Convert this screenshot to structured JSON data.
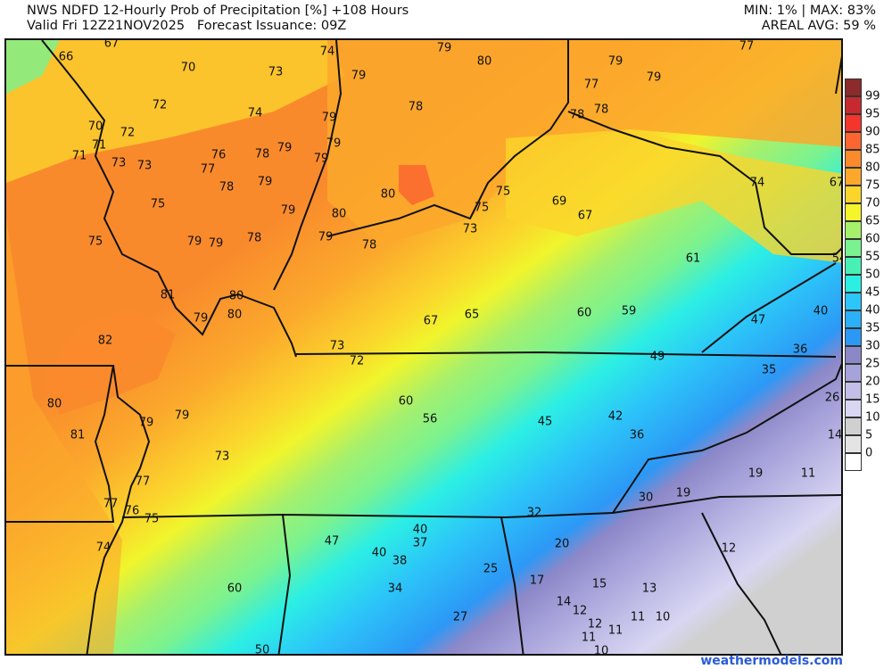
{
  "header": {
    "title_line1": "NWS NDFD 12-Hourly Prob of Precipitation [%] +108 Hours",
    "title_line2": "Valid Fri 12Z21NOV2025   Forecast Issuance: 09Z",
    "stats_line1": "MIN: 1% | MAX: 83%",
    "stats_line2": "AREAL AVG: 59 %"
  },
  "legend": {
    "labels": [
      "99",
      "95",
      "90",
      "85",
      "80",
      "75",
      "70",
      "65",
      "60",
      "55",
      "50",
      "45",
      "40",
      "35",
      "30",
      "25",
      "20",
      "15",
      "10",
      "5",
      "0"
    ],
    "colors": [
      "#8b2b2b",
      "#c72a2e",
      "#f4352c",
      "#fb6630",
      "#fb8a2c",
      "#fba82c",
      "#fbd52c",
      "#f4f52c",
      "#a6f06c",
      "#7af290",
      "#48f0b4",
      "#2cefe4",
      "#2cc6f8",
      "#2cb0f8",
      "#2c98f6",
      "#8c88c8",
      "#a6a2da",
      "#c2bfe8",
      "#d8d6f2",
      "#d0d0d0",
      "#e4e4e4",
      "#ffffff"
    ]
  },
  "map": {
    "labels": [
      "67",
      "66",
      "70",
      "73",
      "74",
      "79",
      "80",
      "79",
      "77",
      "79",
      "77",
      "79",
      "72",
      "74",
      "79",
      "78",
      "78",
      "78",
      "70",
      "72",
      "71",
      "79",
      "71",
      "73",
      "73",
      "76",
      "78",
      "79",
      "79",
      "77",
      "78",
      "79",
      "80",
      "75",
      "75",
      "69",
      "67",
      "74",
      "67",
      "75",
      "79",
      "80",
      "75",
      "79",
      "79",
      "78",
      "79",
      "78",
      "73",
      "61",
      "54",
      "81",
      "80",
      "80",
      "79",
      "82",
      "67",
      "65",
      "60",
      "59",
      "47",
      "40",
      "73",
      "72",
      "49",
      "36",
      "35",
      "26",
      "80",
      "60",
      "56",
      "45",
      "42",
      "79",
      "79",
      "81",
      "36",
      "14",
      "73",
      "19",
      "11",
      "77",
      "30",
      "19",
      "77",
      "76",
      "75",
      "32",
      "74",
      "47",
      "40",
      "40",
      "38",
      "37",
      "20",
      "12",
      "25",
      "17",
      "15",
      "13",
      "60",
      "34",
      "14",
      "12",
      "11",
      "11",
      "10",
      "27",
      "12",
      "11",
      "10",
      "50"
    ]
  },
  "credit": "weathermodels.com"
}
